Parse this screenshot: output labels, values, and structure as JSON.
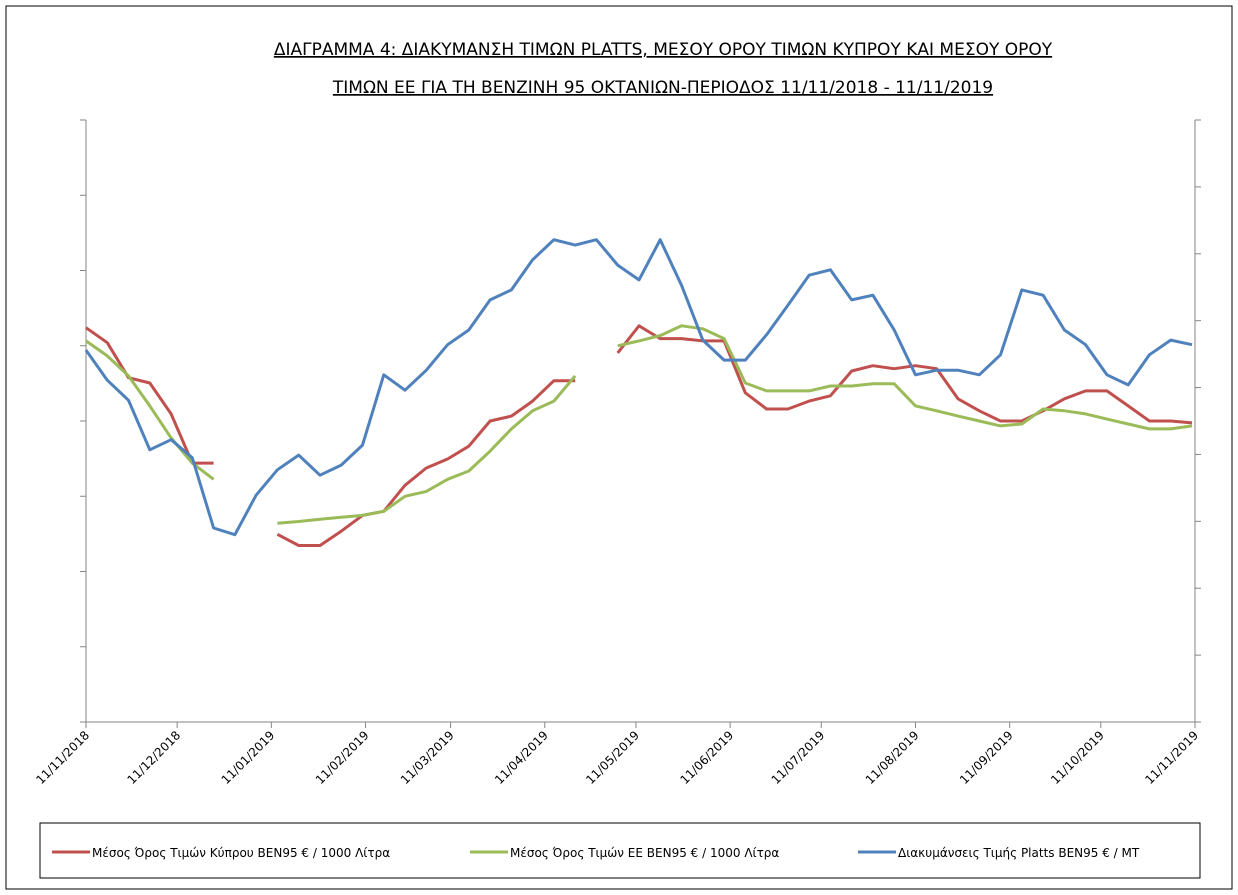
{
  "chart_data": {
    "type": "line",
    "title": [
      "ΔΙΑΓΡΑΜΜΑ 4: ΔΙΑΚΥΜΑΝΣΗ ΤΙΜΩΝ PLATTS, ΜΕΣΟΥ ΟΡΟΥ ΤΙΜΩΝ ΚΥΠΡΟΥ ΚΑΙ ΜΕΣΟΥ ΟΡΟΥ",
      "ΤΙΜΩΝ ΕΕ ΓΙΑ ΤΗ ΒΕΝΖΙΝΗ 95 ΟΚΤΑΝΙΩΝ-ΠΕΡΙΟΔΟΣ 11/11/2018 - 11/11/2019"
    ],
    "x": [
      "11/11/2018",
      "18/11/2018",
      "25/11/2018",
      "02/12/2018",
      "09/12/2018",
      "16/12/2018",
      "23/12/2018",
      "30/12/2018",
      "06/01/2019",
      "13/01/2019",
      "20/01/2019",
      "27/01/2019",
      "03/02/2019",
      "10/02/2019",
      "17/02/2019",
      "24/02/2019",
      "03/03/2019",
      "10/03/2019",
      "17/03/2019",
      "24/03/2019",
      "31/03/2019",
      "07/04/2019",
      "14/04/2019",
      "21/04/2019",
      "28/04/2019",
      "05/05/2019",
      "12/05/2019",
      "19/05/2019",
      "26/05/2019",
      "02/06/2019",
      "09/06/2019",
      "16/06/2019",
      "23/06/2019",
      "30/06/2019",
      "07/07/2019",
      "14/07/2019",
      "21/07/2019",
      "28/07/2019",
      "04/08/2019",
      "11/08/2019",
      "18/08/2019",
      "25/08/2019",
      "01/09/2019",
      "08/09/2019",
      "15/09/2019",
      "22/09/2019",
      "29/09/2019",
      "06/10/2019",
      "13/10/2019",
      "20/10/2019",
      "27/10/2019",
      "03/11/2019",
      "10/11/2019"
    ],
    "series": [
      {
        "name": "Μέσος Όρος Τιμών Κύπρου ΒΕΝ95 € / 1000  Λίτρα",
        "color": "#c0504d",
        "values": [
          1048,
          1008,
          915,
          901,
          819,
          688,
          688,
          null,
          null,
          499,
          469,
          469,
          507,
          549,
          560,
          629,
          675,
          699,
          733,
          800,
          813,
          853,
          907,
          907,
          null,
          981,
          1053,
          1019,
          1019,
          1013,
          1013,
          875,
          832,
          832,
          853,
          867,
          933,
          947,
          939,
          947,
          939,
          859,
          827,
          800,
          800,
          827,
          859,
          880,
          880,
          840,
          800,
          800,
          795
        ]
      },
      {
        "name": "Μέσος Όρος Τιμών ΕΕ ΒΕΝ95 € / 1000  Λίτρα",
        "color": "#9bbb59",
        "values": [
          1013,
          973,
          920,
          840,
          755,
          688,
          645,
          null,
          null,
          528,
          533,
          539,
          544,
          549,
          560,
          600,
          613,
          645,
          667,
          720,
          779,
          827,
          853,
          920,
          null,
          1000,
          1013,
          1027,
          1053,
          1045,
          1019,
          901,
          880,
          880,
          880,
          893,
          893,
          899,
          899,
          840,
          827,
          813,
          800,
          787,
          792,
          832,
          827,
          819,
          805,
          792,
          779,
          779,
          787
        ]
      },
      {
        "name": "Διακυμάνσεις Τιμής Platts ΒΕΝ95 € / ΜΤ",
        "color": "#4f81bd",
        "axis": "y2",
        "values": [
          556,
          511,
          481,
          407,
          422,
          395,
          290,
          280,
          339,
          377,
          399,
          369,
          384,
          414,
          519,
          496,
          526,
          564,
          586,
          631,
          646,
          691,
          721,
          713,
          721,
          683,
          661,
          721,
          653,
          571,
          541,
          541,
          579,
          623,
          668,
          676,
          631,
          638,
          586,
          519,
          526,
          526,
          519,
          549,
          646,
          638,
          586,
          564,
          519,
          504,
          549,
          571,
          564
        ]
      }
    ],
    "xlim": [
      "11/11/2018",
      "11/11/2019"
    ],
    "xticks": [
      "11/11/2018",
      "11/12/2018",
      "11/01/2019",
      "11/02/2019",
      "11/03/2019",
      "11/04/2019",
      "11/05/2019",
      "11/06/2019",
      "11/07/2019",
      "11/08/2019",
      "11/09/2019",
      "11/10/2019",
      "11/11/2019"
    ],
    "ylim": [
      0,
      1600
    ],
    "yticks": [
      0,
      200,
      400,
      600,
      800,
      1000,
      1200,
      1400,
      1600
    ],
    "y2lim": [
      0,
      900
    ],
    "y2ticks": [
      0,
      100,
      200,
      300,
      400,
      500,
      600,
      700,
      800,
      900
    ],
    "legend": "bottom"
  }
}
